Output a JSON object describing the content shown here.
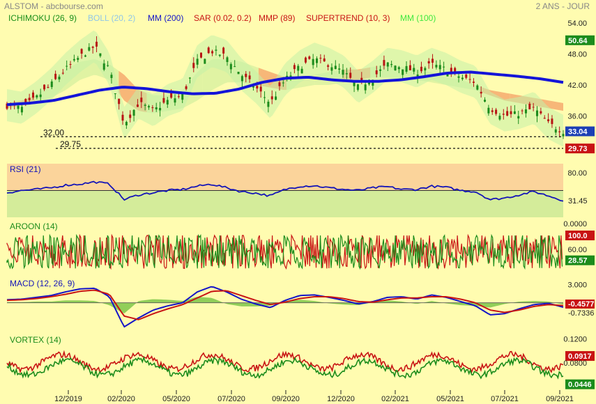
{
  "header": {
    "title": "ALSTOM - abcbourse.com",
    "period": "2 ANS - JOUR"
  },
  "indicators": [
    {
      "label": "ICHIMOKU (26, 9)",
      "color": "#1a8f1a"
    },
    {
      "label": "BOLL (20, 2)",
      "color": "#8fc6e8"
    },
    {
      "label": "MM (200)",
      "color": "#1414c8"
    },
    {
      "label": "SAR (0.02, 0.2)",
      "color": "#c81414"
    },
    {
      "label": "MMP (89)",
      "color": "#c81414"
    },
    {
      "label": "SUPERTREND (10, 3)",
      "color": "#c81414"
    },
    {
      "label": "MM (100)",
      "color": "#3ee83e"
    }
  ],
  "chart_data": [
    {
      "type": "line",
      "panel": "price",
      "y_ticks": [
        "54.00",
        "48.00",
        "42.00",
        "36.00"
      ],
      "ylim": [
        28,
        56
      ],
      "levels": [
        {
          "label": "32.00",
          "value": 32.0
        },
        {
          "label": "29.75",
          "value": 29.75
        }
      ],
      "badges": [
        {
          "label": "50.64",
          "value": 50.64,
          "color": "#1c8c1c"
        },
        {
          "label": "33.04",
          "value": 33.04,
          "color": "#1c3fb5"
        },
        {
          "label": "29.73",
          "value": 29.73,
          "color": "#c81414"
        }
      ],
      "x_labels": [
        "12/2019",
        "02/2020",
        "05/2020",
        "07/2020",
        "09/2020",
        "12/2020",
        "02/2021",
        "05/2021",
        "07/2021",
        "09/2021"
      ],
      "series": [
        {
          "name": "MM (200)",
          "values": [
            38.2,
            38.5,
            39.0,
            40.0,
            41.0,
            41.6,
            41.3,
            40.7,
            40.3,
            40.4,
            41.2,
            42.5,
            43.3,
            43.5,
            43.0,
            42.7,
            42.7,
            43.0,
            43.6,
            44.3,
            44.5,
            44.1,
            43.7,
            43.2,
            42.5
          ]
        },
        {
          "name": "close",
          "values": [
            38.0,
            37.5,
            39.5,
            42.0,
            45.0,
            47.5,
            49.5,
            45.0,
            34.5,
            38.5,
            37.0,
            39.0,
            40.0,
            46.5,
            48.5,
            47.5,
            44.0,
            41.5,
            38.5,
            43.0,
            45.5,
            47.0,
            46.0,
            44.5,
            41.5,
            43.5,
            46.0,
            45.5,
            44.5,
            46.0,
            45.0,
            43.5,
            42.5,
            37.5,
            36.0,
            36.5,
            37.5,
            34.5,
            33.04
          ]
        },
        {
          "name": "ichimoku_cloud_top",
          "values": [
            38.5,
            39.0,
            40.0,
            42.5,
            45.0,
            46.5,
            47.0,
            46.0,
            44.0,
            41.0,
            40.0,
            40.0,
            41.0,
            44.5,
            47.0,
            47.0,
            46.5,
            45.5,
            44.5,
            43.5,
            43.5,
            44.0,
            44.5,
            45.0,
            45.0,
            45.5,
            46.0,
            45.5,
            45.0,
            44.5,
            43.5,
            43.0,
            42.0,
            41.0,
            40.5,
            40.0,
            39.5,
            39.0,
            38.5
          ]
        },
        {
          "name": "ichimoku_cloud_bottom",
          "values": [
            37.5,
            38.0,
            38.5,
            39.5,
            41.0,
            43.0,
            44.0,
            43.0,
            39.0,
            37.0,
            36.5,
            37.0,
            37.5,
            39.0,
            41.0,
            42.5,
            42.5,
            42.0,
            41.5,
            41.0,
            41.5,
            42.0,
            42.0,
            42.5,
            43.0,
            43.5,
            43.5,
            43.0,
            43.0,
            42.5,
            42.0,
            41.5,
            41.0,
            40.0,
            39.0,
            38.5,
            38.0,
            37.5,
            37.0
          ]
        }
      ]
    },
    {
      "type": "line",
      "panel": "rsi",
      "title": "RSI (21)",
      "y_ticks": [
        "80.00",
        "31.45",
        "0.0000"
      ],
      "ylim": [
        0,
        100
      ],
      "ref_line": 50,
      "last_value": 31.45,
      "values": [
        46,
        50,
        52,
        55,
        60,
        62,
        66,
        62,
        33,
        42,
        46,
        50,
        52,
        58,
        62,
        55,
        48,
        45,
        40,
        52,
        58,
        59,
        55,
        52,
        50,
        55,
        57,
        52,
        52,
        58,
        56,
        50,
        48,
        33,
        36,
        42,
        48,
        40,
        31.45
      ]
    },
    {
      "type": "line",
      "panel": "aroon",
      "title": "AROON (14)",
      "y_ticks": [
        "100.0",
        "60.00",
        "28.57"
      ],
      "ylim": [
        0,
        100
      ],
      "series": [
        {
          "name": "aroon_up",
          "color": "#c81414",
          "last": 100.0
        },
        {
          "name": "aroon_down",
          "color": "#1c8c1c",
          "last": 28.57
        }
      ]
    },
    {
      "type": "line",
      "panel": "macd",
      "title": "MACD (12, 26, 9)",
      "y_ticks": [
        "3.000",
        "-0.4577",
        "-0.7336"
      ],
      "ylim": [
        -5,
        4
      ],
      "series": [
        {
          "name": "macd",
          "color": "#1414c8",
          "last": -0.7336,
          "values": [
            0.5,
            0.6,
            0.9,
            1.2,
            1.8,
            2.3,
            2.4,
            1.0,
            -4.0,
            -2.5,
            -1.2,
            -0.5,
            0.0,
            1.8,
            2.7,
            1.8,
            0.6,
            -0.2,
            -0.8,
            0.4,
            1.2,
            1.3,
            0.9,
            0.4,
            -0.2,
            0.2,
            0.9,
            1.0,
            0.6,
            1.3,
            0.9,
            0.2,
            -0.5,
            -2.0,
            -1.8,
            -1.0,
            -0.3,
            -0.1,
            -0.7336
          ]
        },
        {
          "name": "signal",
          "color": "#c81414",
          "last": -0.4577,
          "values": [
            0.4,
            0.5,
            0.7,
            1.0,
            1.4,
            1.9,
            2.1,
            1.4,
            -2.2,
            -2.8,
            -1.8,
            -1.0,
            -0.3,
            0.8,
            1.9,
            2.0,
            1.2,
            0.4,
            -0.3,
            0.1,
            0.7,
            1.0,
            1.0,
            0.7,
            0.2,
            0.1,
            0.5,
            0.8,
            0.8,
            1.0,
            1.0,
            0.6,
            0.0,
            -1.2,
            -1.6,
            -1.2,
            -0.6,
            -0.3,
            -0.4577
          ]
        }
      ]
    },
    {
      "type": "line",
      "panel": "vortex",
      "title": "VORTEX (14)",
      "y_ticks": [
        "0.1200",
        "0.0917",
        "0.0800",
        "0.0446"
      ],
      "ylim": [
        0.035,
        0.13
      ],
      "series": [
        {
          "name": "vi_plus",
          "color": "#c81414",
          "last": 0.0917
        },
        {
          "name": "vi_minus",
          "color": "#1c8c1c",
          "last": 0.0446
        }
      ]
    }
  ]
}
